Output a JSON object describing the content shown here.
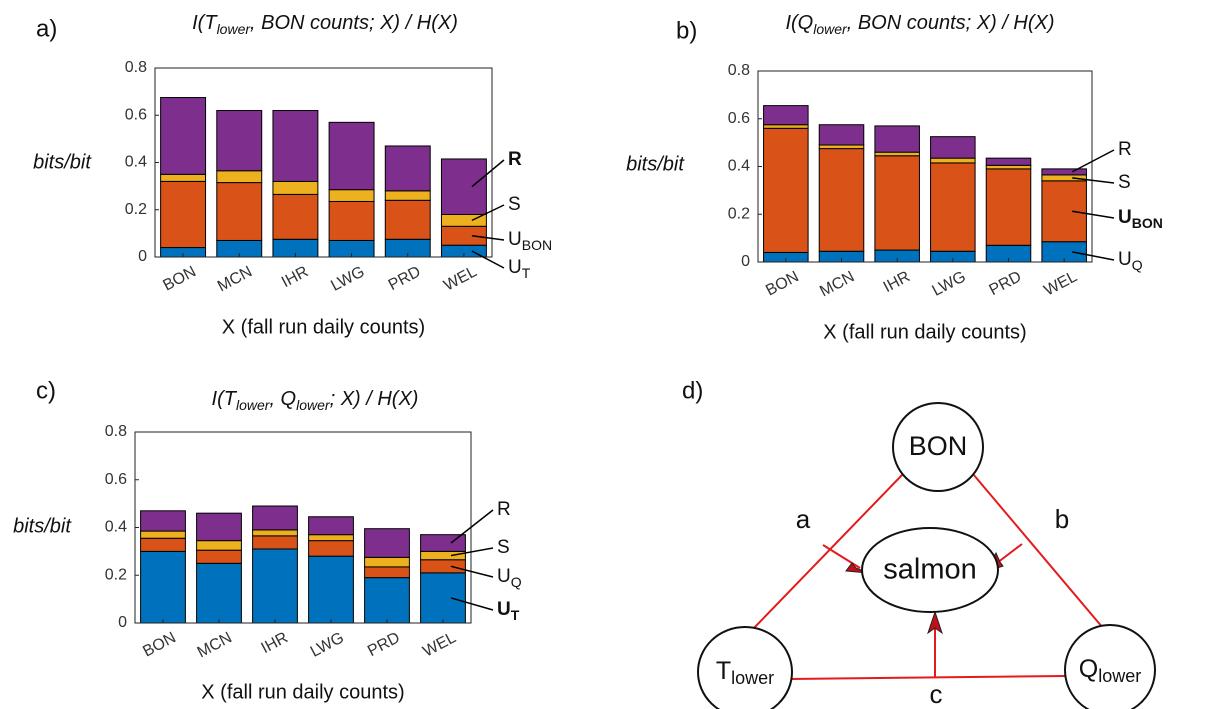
{
  "chart_data": [
    {
      "type": "stacked_bar",
      "panel_label": "a)",
      "title": [
        "I(T",
        "lower",
        ", BON counts; X) / H(X)"
      ],
      "ylabel": "bits/bit",
      "xlabel": "X (fall run daily counts)",
      "categories": [
        "BON",
        "MCN",
        "IHR",
        "LWG",
        "PRD",
        "WEL"
      ],
      "ylim": [
        0,
        0.8
      ],
      "yticks": [
        0,
        0.2,
        0.4,
        0.6,
        0.8
      ],
      "series": [
        {
          "name": "U",
          "sub": "T",
          "color": "#0072bd",
          "values": [
            0.04,
            0.07,
            0.075,
            0.07,
            0.075,
            0.05
          ]
        },
        {
          "name": "U",
          "sub": "BON",
          "color": "#d95319",
          "values": [
            0.28,
            0.245,
            0.19,
            0.165,
            0.165,
            0.08
          ]
        },
        {
          "name": "S",
          "color": "#edb120",
          "values": [
            0.03,
            0.05,
            0.055,
            0.05,
            0.04,
            0.05
          ]
        },
        {
          "name": "R",
          "color": "#7e2f8e",
          "bold": true,
          "values": [
            0.325,
            0.255,
            0.3,
            0.285,
            0.19,
            0.235
          ]
        }
      ]
    },
    {
      "type": "stacked_bar",
      "panel_label": "b)",
      "title": [
        "I(Q",
        "lower",
        ", BON counts; X) / H(X)"
      ],
      "ylabel": "bits/bit",
      "xlabel": "X (fall run daily counts)",
      "categories": [
        "BON",
        "MCN",
        "IHR",
        "LWG",
        "PRD",
        "WEL"
      ],
      "ylim": [
        0,
        0.8
      ],
      "yticks": [
        0,
        0.2,
        0.4,
        0.6,
        0.8
      ],
      "series": [
        {
          "name": "U",
          "sub": "Q",
          "color": "#0072bd",
          "values": [
            0.04,
            0.045,
            0.05,
            0.045,
            0.07,
            0.085
          ]
        },
        {
          "name": "U",
          "sub": "BON",
          "color": "#d95319",
          "bold": true,
          "values": [
            0.52,
            0.43,
            0.395,
            0.37,
            0.32,
            0.255
          ]
        },
        {
          "name": "S",
          "color": "#edb120",
          "values": [
            0.015,
            0.015,
            0.015,
            0.02,
            0.015,
            0.025
          ]
        },
        {
          "name": "R",
          "color": "#7e2f8e",
          "values": [
            0.08,
            0.085,
            0.11,
            0.09,
            0.03,
            0.025
          ]
        }
      ]
    },
    {
      "type": "stacked_bar",
      "panel_label": "c)",
      "title": [
        "I(T",
        "lower",
        ", Q",
        "lower",
        "; X) / H(X)"
      ],
      "ylabel": "bits/bit",
      "xlabel": "X (fall run daily counts)",
      "categories": [
        "BON",
        "MCN",
        "IHR",
        "LWG",
        "PRD",
        "WEL"
      ],
      "ylim": [
        0,
        0.8
      ],
      "yticks": [
        0,
        0.2,
        0.4,
        0.6,
        0.8
      ],
      "series": [
        {
          "name": "U",
          "sub": "T",
          "color": "#0072bd",
          "bold": true,
          "values": [
            0.3,
            0.25,
            0.31,
            0.28,
            0.19,
            0.21
          ]
        },
        {
          "name": "U",
          "sub": "Q",
          "color": "#d95319",
          "values": [
            0.055,
            0.055,
            0.055,
            0.065,
            0.045,
            0.055
          ]
        },
        {
          "name": "S",
          "color": "#edb120",
          "values": [
            0.03,
            0.04,
            0.025,
            0.025,
            0.04,
            0.035
          ]
        },
        {
          "name": "R",
          "color": "#7e2f8e",
          "values": [
            0.085,
            0.115,
            0.1,
            0.075,
            0.12,
            0.07
          ]
        }
      ]
    }
  ],
  "diagram": {
    "panel_label": "d)",
    "nodes": [
      {
        "label": "BON"
      },
      {
        "label": "salmon"
      },
      {
        "label": "T",
        "sub": "lower"
      },
      {
        "label": "Q",
        "sub": "lower"
      }
    ],
    "edges": [
      {
        "label": "a"
      },
      {
        "label": "b"
      },
      {
        "label": "c"
      }
    ]
  }
}
